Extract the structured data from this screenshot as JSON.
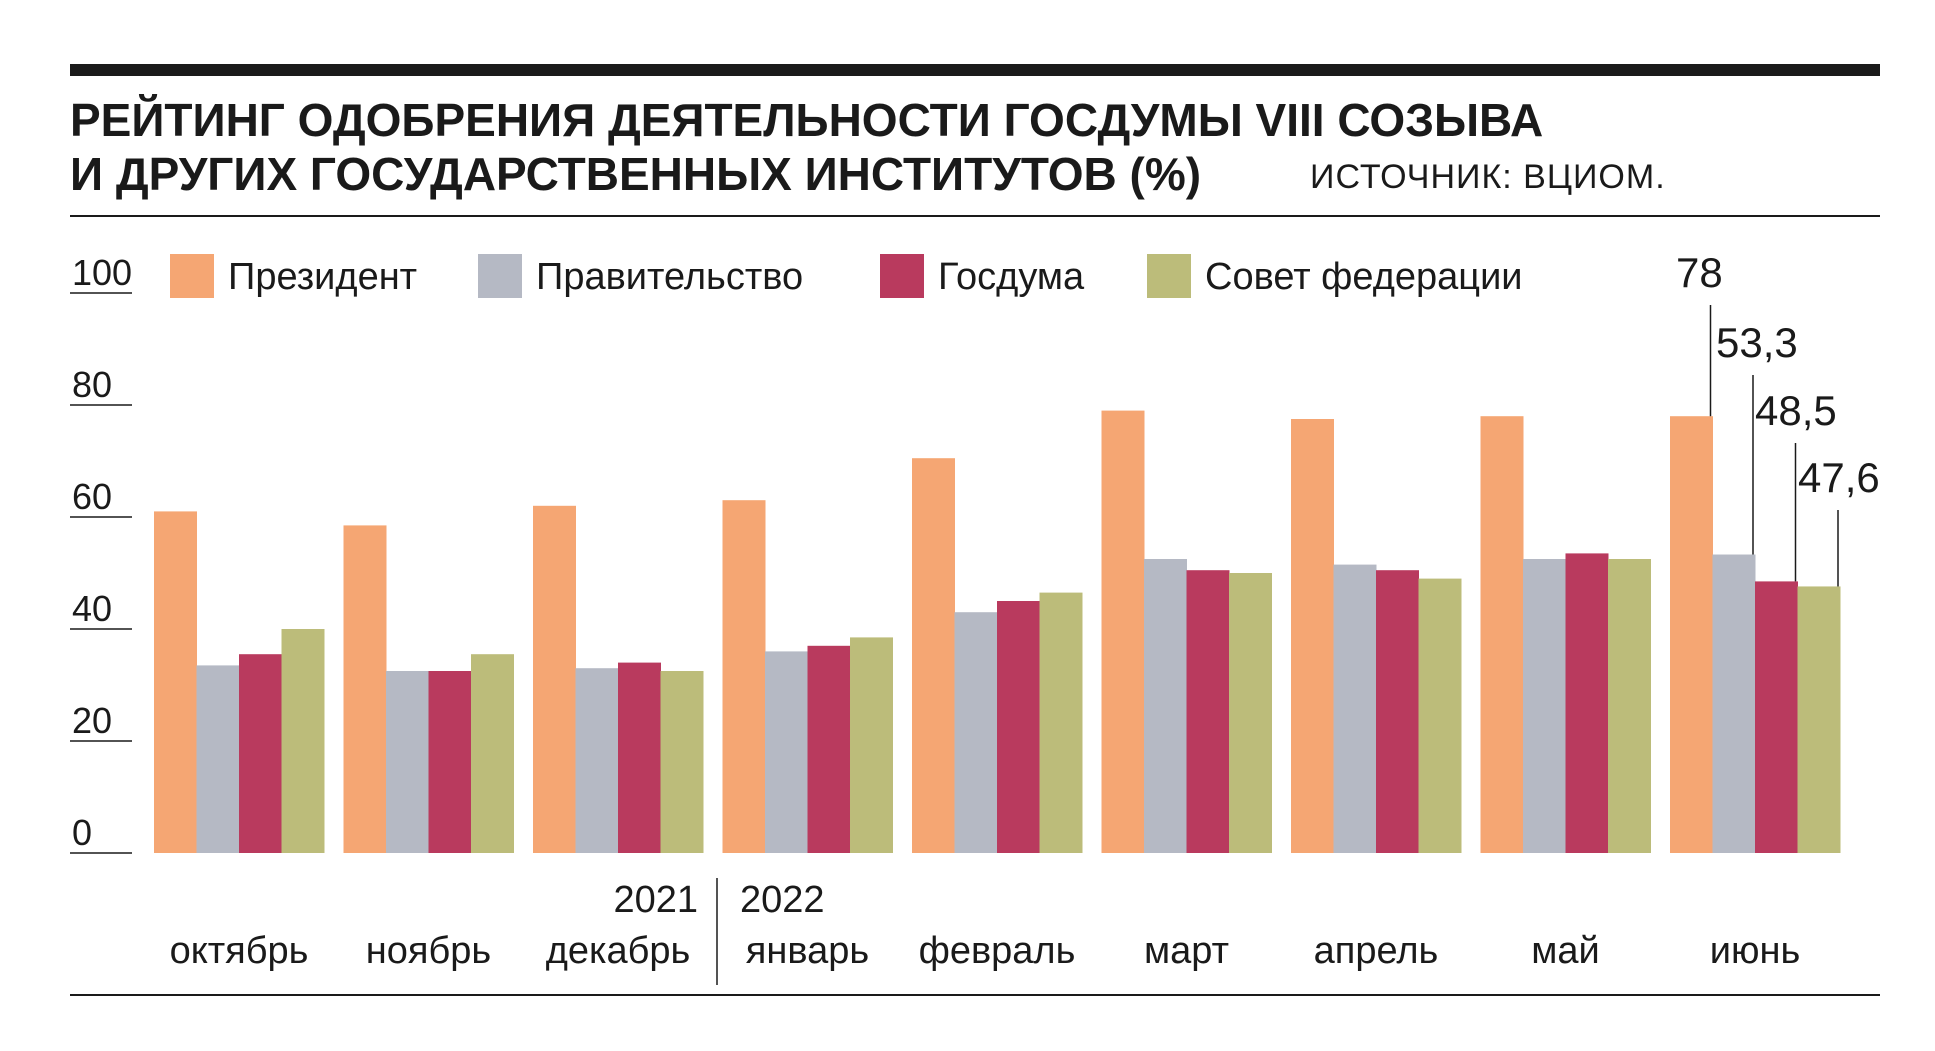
{
  "title_line1": "РЕЙТИНГ ОДОБРЕНИЯ ДЕЯТЕЛЬНОСТИ ГОСДУМЫ VIII СОЗЫВА",
  "title_line2": "И ДРУГИХ ГОСУДАРСТВЕННЫХ ИНСТИТУТОВ (%)",
  "source": "ИСТОЧНИК: ВЦИОМ.",
  "chart_data": {
    "type": "bar",
    "title": "РЕЙТИНГ ОДОБРЕНИЯ ДЕЯТЕЛЬНОСТИ ГОСДУМЫ VIII СОЗЫВА И ДРУГИХ ГОСУДАРСТВЕННЫХ ИНСТИТУТОВ (%)",
    "xlabel": "",
    "ylabel": "",
    "ylim": [
      0,
      100
    ],
    "yticks": [
      "0",
      "20",
      "40",
      "60",
      "80",
      "100"
    ],
    "categories": [
      "октябрь",
      "ноябрь",
      "декабрь",
      "январь",
      "февраль",
      "март",
      "апрель",
      "май",
      "июнь"
    ],
    "year_labels": [
      {
        "text": "2021",
        "category_index": 2
      },
      {
        "text": "2022",
        "category_index": 3
      }
    ],
    "legend_position": "top",
    "series": [
      {
        "name": "Президент",
        "color": "#F5A673",
        "values": [
          61,
          58.5,
          62,
          63,
          70.5,
          79,
          77.5,
          78,
          78
        ]
      },
      {
        "name": "Правительство",
        "color": "#B5B9C4",
        "values": [
          33.5,
          32.5,
          33,
          36,
          43,
          52.5,
          51.5,
          52.5,
          53.3
        ]
      },
      {
        "name": "Госдума",
        "color": "#B93A5E",
        "values": [
          35.5,
          32.5,
          34,
          37,
          45,
          50.5,
          50.5,
          53.5,
          48.5
        ]
      },
      {
        "name": "Совет федерации",
        "color": "#BCBC7A",
        "values": [
          40,
          35.5,
          32.5,
          38.5,
          46.5,
          50,
          49,
          52.5,
          47.6
        ]
      }
    ],
    "value_labels": {
      "category_index": 8,
      "texts": [
        "78",
        "53,3",
        "48,5",
        "47,6"
      ]
    }
  }
}
